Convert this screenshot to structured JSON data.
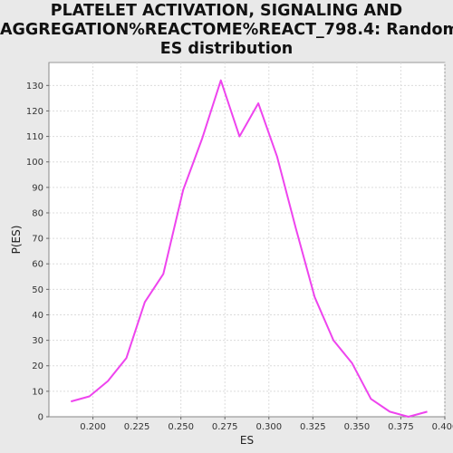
{
  "chart_data": {
    "type": "line",
    "title_lines": [
      "PLATELET ACTIVATION, SIGNALING AND",
      "AGGREGATION%REACTOME%REACT_798.4: Random",
      "ES distribution"
    ],
    "xlabel": "ES",
    "ylabel": "P(ES)",
    "xlim": [
      0.175,
      0.4
    ],
    "ylim": [
      0,
      139
    ],
    "xticks": [
      "0.200",
      "0.225",
      "0.250",
      "0.275",
      "0.300",
      "0.325",
      "0.350",
      "0.375",
      "0.400"
    ],
    "xtick_values": [
      0.2,
      0.225,
      0.25,
      0.275,
      0.3,
      0.325,
      0.35,
      0.375,
      0.4
    ],
    "yticks": [
      0,
      10,
      20,
      30,
      40,
      50,
      60,
      70,
      80,
      90,
      100,
      110,
      120,
      130
    ],
    "grid": true,
    "series": [
      {
        "color": "#ee44ee",
        "x": [
          0.1875,
          0.198,
          0.2085,
          0.219,
          0.2295,
          0.24,
          0.2513,
          0.262,
          0.2727,
          0.2833,
          0.294,
          0.3047,
          0.3153,
          0.326,
          0.3367,
          0.3473,
          0.358,
          0.3687,
          0.3793,
          0.39
        ],
        "y": [
          6,
          8,
          14,
          23,
          45,
          56,
          89,
          109,
          132,
          110,
          123,
          102,
          74,
          47,
          30,
          21,
          7,
          2,
          0,
          2
        ]
      }
    ]
  }
}
